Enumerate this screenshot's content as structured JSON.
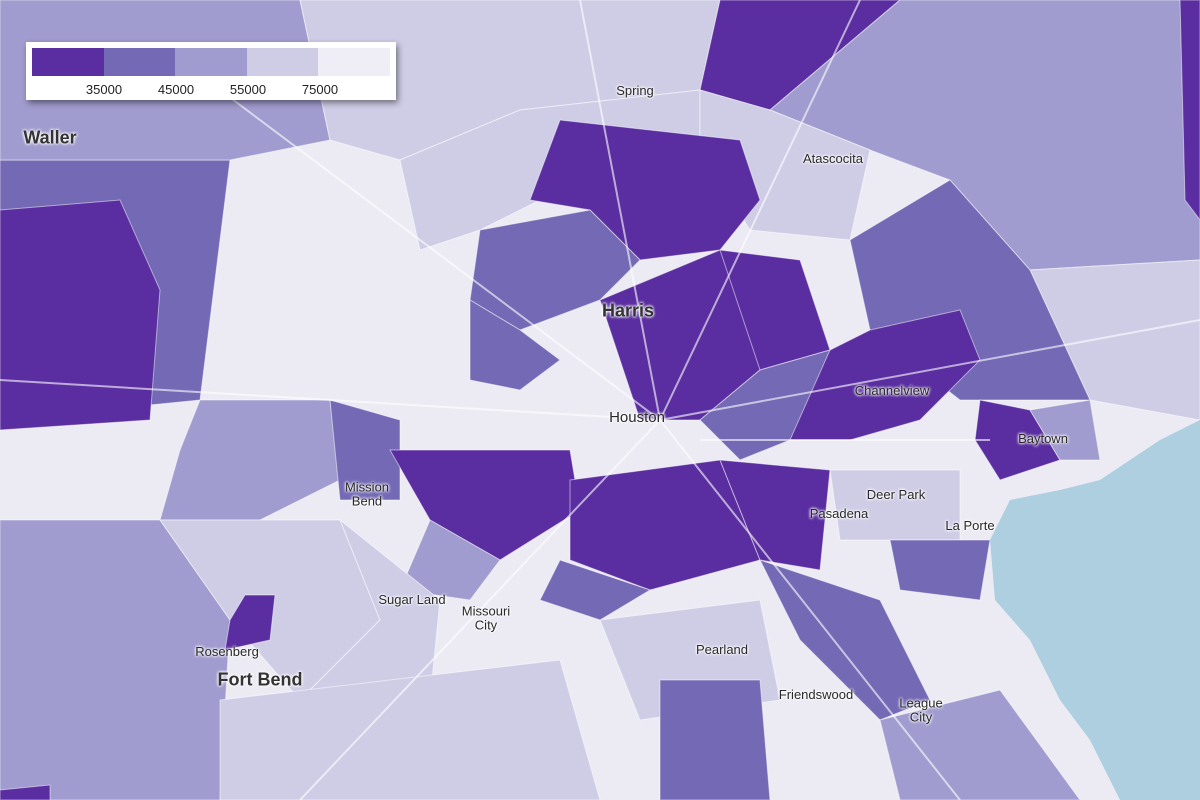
{
  "legend": {
    "colors": [
      "#5a2ea0",
      "#7469b5",
      "#a19ccf",
      "#cfcde6",
      "#efeef7"
    ],
    "ticks": [
      "35000",
      "45000",
      "55000",
      "75000"
    ]
  },
  "map_colors": {
    "background": "#ecebf4",
    "water": "#adcfe0",
    "roads": "#ffffff"
  },
  "places": {
    "counties": [
      "Waller",
      "Harris",
      "Fort Bend"
    ],
    "cities": [
      "Spring",
      "Atascocita",
      "Houston",
      "Channelview",
      "Baytown",
      "Mission\nBend",
      "Deer Park",
      "Pasadena",
      "La Porte",
      "Sugar Land",
      "Missouri\nCity",
      "Rosenberg",
      "Pearland",
      "Friendswood",
      "League\nCity"
    ]
  }
}
